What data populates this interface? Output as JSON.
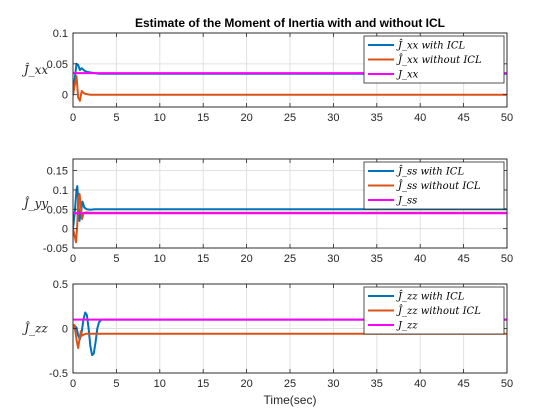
{
  "chart_data": {
    "type": "line",
    "title": "Estimate of the Moment of Inertia with and without ICL",
    "xlabel": "Time(sec)",
    "xlim": [
      0,
      50
    ],
    "xticks": [
      0,
      5,
      10,
      15,
      20,
      25,
      30,
      35,
      40,
      45,
      50
    ],
    "grid": true,
    "legend_position": "top-right",
    "subplots": [
      {
        "ylabel": "Ĵ_xx",
        "ylim": [
          -0.02,
          0.1
        ],
        "yticks": [
          0,
          0.05,
          0.1
        ],
        "ytick_labels": [
          "0",
          "0.05",
          "0.1"
        ],
        "series": [
          {
            "name": "Ĵ_xx with ICL",
            "color": "#0072BD",
            "x": [
              0,
              0.2,
              0.4,
              0.6,
              0.8,
              1.0,
              1.3,
              1.6,
              2.0,
              2.5,
              3.0,
              50
            ],
            "y": [
              0,
              0.025,
              0.05,
              0.048,
              0.04,
              0.043,
              0.039,
              0.037,
              0.036,
              0.035,
              0.034,
              0.034
            ]
          },
          {
            "name": "Ĵ_xx without ICL",
            "color": "#D95319",
            "x": [
              0,
              0.2,
              0.4,
              0.6,
              0.8,
              1.0,
              1.2,
              1.5,
              2.0,
              2.5,
              50
            ],
            "y": [
              0,
              0.015,
              0.03,
              -0.005,
              -0.01,
              0.006,
              0.003,
              0.001,
              0.0,
              0.0,
              0.0
            ]
          },
          {
            "name": "J_xx",
            "color": "#FF00FF",
            "x": [
              0,
              50
            ],
            "y": [
              0.035,
              0.035
            ]
          }
        ]
      },
      {
        "ylabel": "Ĵ_yy",
        "ylim": [
          -0.05,
          0.18
        ],
        "yticks": [
          -0.05,
          0,
          0.05,
          0.1,
          0.15
        ],
        "ytick_labels": [
          "-0.05",
          "0",
          "0.05",
          "0.1",
          "0.15"
        ],
        "series": [
          {
            "name": "Ĵ_ss with ICL",
            "color": "#0072BD",
            "x": [
              0,
              0.2,
              0.4,
              0.5,
              0.6,
              0.75,
              0.9,
              1.1,
              1.3,
              1.6,
              2.0,
              2.5,
              3.0,
              50
            ],
            "y": [
              0,
              0.04,
              0.1,
              0.11,
              0.075,
              0.02,
              0.04,
              0.07,
              0.055,
              0.05,
              0.049,
              0.05,
              0.05,
              0.05
            ]
          },
          {
            "name": "Ĵ_ss without ICL",
            "color": "#D95319",
            "x": [
              0,
              0.2,
              0.35,
              0.5,
              0.6,
              0.75,
              0.9,
              1.05,
              1.2,
              1.5,
              2.0,
              50
            ],
            "y": [
              0,
              -0.02,
              -0.035,
              0.01,
              0.08,
              0.09,
              0.06,
              0.025,
              0.04,
              0.042,
              0.041,
              0.041
            ]
          },
          {
            "name": "J_ss",
            "color": "#FF00FF",
            "x": [
              0,
              50
            ],
            "y": [
              0.04,
              0.04
            ]
          }
        ]
      },
      {
        "ylabel": "Ĵ_zz",
        "ylim": [
          -0.5,
          0.5
        ],
        "yticks": [
          -0.5,
          0,
          0.5
        ],
        "ytick_labels": [
          "-0.5",
          "0",
          "0.5"
        ],
        "series": [
          {
            "name": "Ĵ_zz with ICL",
            "color": "#0072BD",
            "x": [
              0,
              0.2,
              0.4,
              0.6,
              0.8,
              1.0,
              1.2,
              1.4,
              1.6,
              1.8,
              2.0,
              2.2,
              2.4,
              2.6,
              2.8,
              3.0,
              3.3,
              3.6,
              4.0,
              50
            ],
            "y": [
              0,
              0.03,
              0.01,
              -0.08,
              -0.12,
              -0.04,
              0.1,
              0.18,
              0.15,
              0.0,
              -0.2,
              -0.3,
              -0.28,
              -0.15,
              0.0,
              0.07,
              0.1,
              0.1,
              0.1,
              0.1
            ]
          },
          {
            "name": "Ĵ_zz without ICL",
            "color": "#D95319",
            "x": [
              0,
              0.15,
              0.3,
              0.45,
              0.6,
              0.75,
              0.9,
              1.05,
              1.2,
              1.5,
              2.0,
              50
            ],
            "y": [
              0,
              0.04,
              -0.05,
              -0.15,
              -0.22,
              -0.12,
              -0.03,
              -0.08,
              -0.07,
              -0.06,
              -0.06,
              -0.06
            ]
          },
          {
            "name": "J_zz",
            "color": "#FF00FF",
            "x": [
              0,
              50
            ],
            "y": [
              0.1,
              0.1
            ]
          }
        ]
      }
    ]
  }
}
